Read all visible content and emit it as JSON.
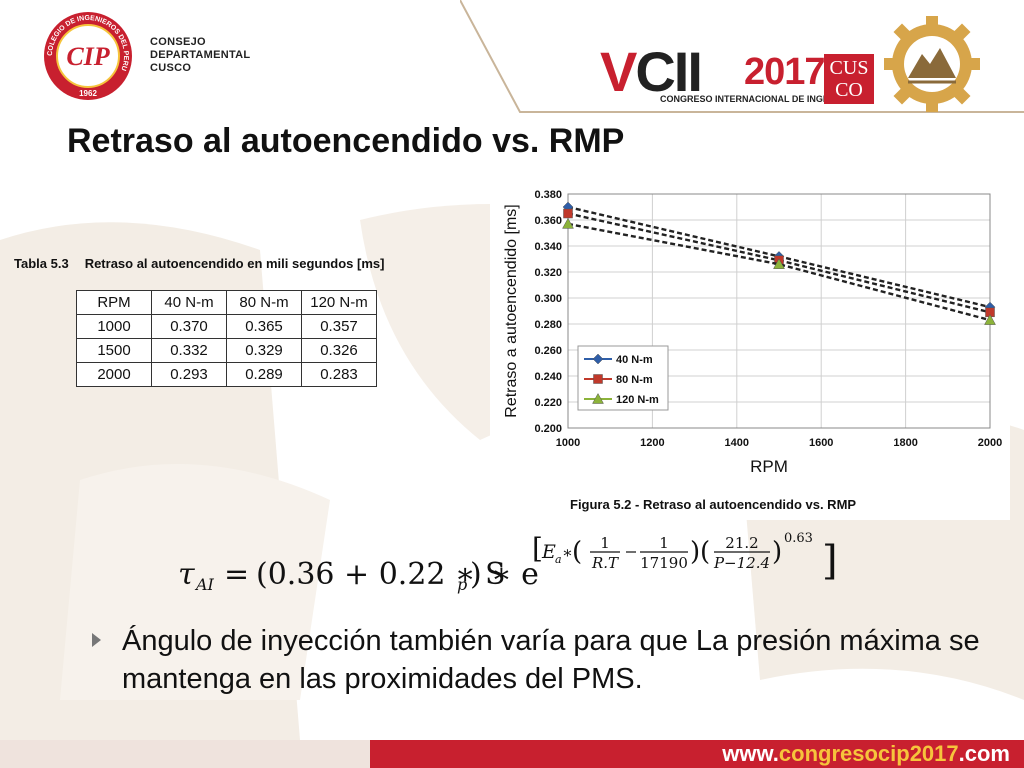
{
  "header": {
    "org_lines": [
      "CONSEJO",
      "DEPARTAMENTAL",
      "CUSCO"
    ],
    "logo_text": "CIP",
    "logo_ring_text": "COLEGIO DE INGENIEROS DEL PERU",
    "logo_year": "1962",
    "event_v": "V",
    "event_cii": "CII",
    "event_year": "2017",
    "event_subtitle": "CONGRESO INTERNACIONAL DE INGENIERÍA",
    "cusco_box_line1": "CUS",
    "cusco_box_line2": "CO"
  },
  "title": "Retraso al autoencendido vs. RMP",
  "table": {
    "caption_number": "Tabla 5.3",
    "caption_text": "Retraso al autoencendido en mili segundos [ms]",
    "headers": [
      "RPM",
      "40 N-m",
      "80 N-m",
      "120 N-m"
    ],
    "rows": [
      [
        "1000",
        "0.370",
        "0.365",
        "0.357"
      ],
      [
        "1500",
        "0.332",
        "0.329",
        "0.326"
      ],
      [
        "2000",
        "0.293",
        "0.289",
        "0.283"
      ]
    ]
  },
  "chart_data": {
    "type": "line",
    "x": [
      1000,
      1500,
      2000
    ],
    "series": [
      {
        "name": "40 N-m",
        "values": [
          0.37,
          0.332,
          0.293
        ],
        "color": "#2f5ea8",
        "marker": "diamond"
      },
      {
        "name": "80 N-m",
        "values": [
          0.365,
          0.329,
          0.289
        ],
        "color": "#c0392b",
        "marker": "square"
      },
      {
        "name": "120 N-m",
        "values": [
          0.357,
          0.326,
          0.283
        ],
        "color": "#8cb33a",
        "marker": "triangle"
      }
    ],
    "xlabel": "RPM",
    "ylabel": "Retraso a autoencendido [ms]",
    "xlim": [
      1000,
      2000
    ],
    "ylim": [
      0.2,
      0.38
    ],
    "xticks": [
      "1000",
      "1200",
      "1400",
      "1600",
      "1800",
      "2000"
    ],
    "yticks": [
      "0.200",
      "0.220",
      "0.240",
      "0.260",
      "0.280",
      "0.300",
      "0.320",
      "0.340",
      "0.360",
      "0.380"
    ],
    "grid": true,
    "legend_position": "lower-left",
    "line_style": "dashed",
    "caption": "Figura 5.2 - Retraso al autoencendido vs. RMP"
  },
  "formula": {
    "lhs": "τ",
    "lhs_sub": "AI",
    "eq": "=",
    "part1": "(0.36 + 0.22 ∗ S",
    "sp_sub": "p",
    "part2": ") ∗ e",
    "exp_ea": "E",
    "exp_ea_sub": "a",
    "exp_star": "∗",
    "frac1_num": "1",
    "frac1_den": "R.T",
    "frac2_num": "1",
    "frac2_den": "17190",
    "frac3_num": "21.2",
    "frac3_den": "P−12.4",
    "power": "0.63"
  },
  "bullet": "Ángulo de inyección también varía para que La presión máxima se mantenga en las proximidades del PMS.",
  "footer": {
    "url_prefix": "www.",
    "url_mid": "congresocip2017",
    "url_suffix": ".com"
  },
  "colors": {
    "brand_red": "#c8202f",
    "gold": "#f6c43c",
    "watermark": "#efe8df"
  }
}
